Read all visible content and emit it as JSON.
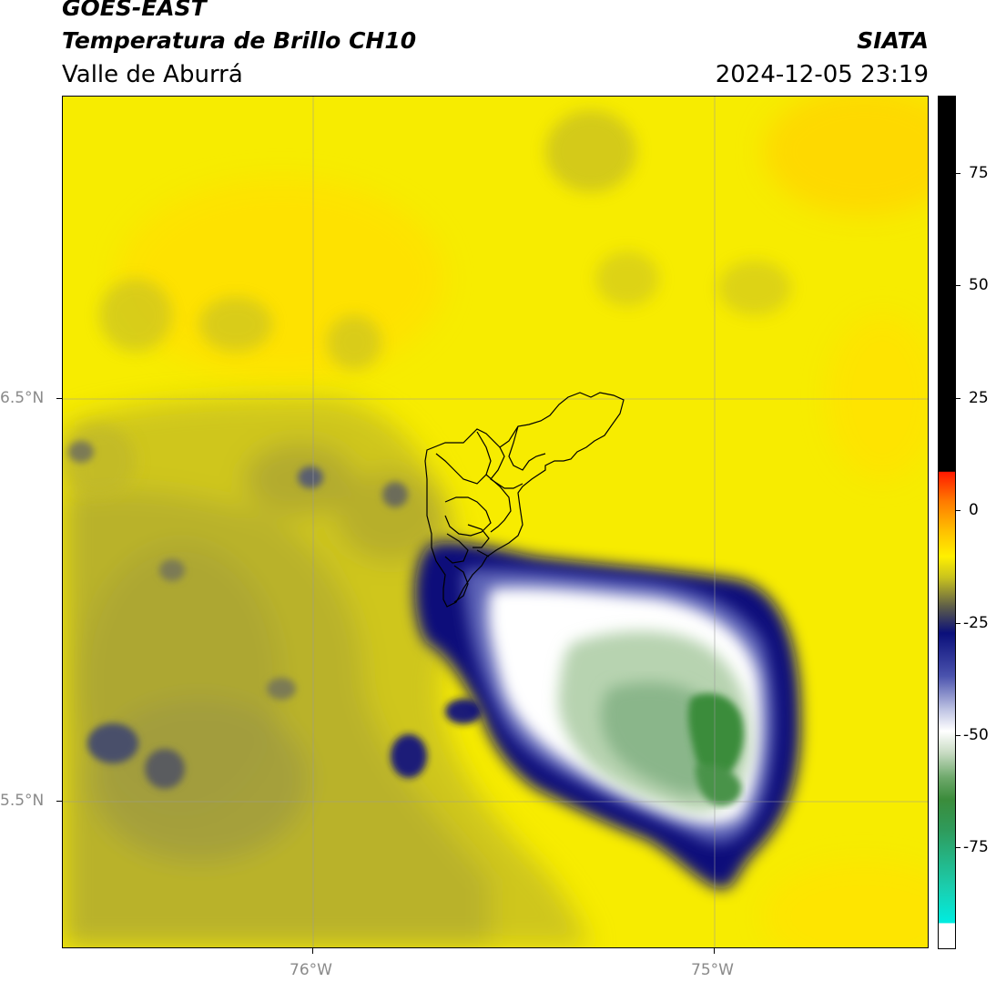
{
  "header": {
    "satellite": "GOES-EAST",
    "product": "Temperatura de Brillo CH10",
    "region": "Valle de Aburrá",
    "agency": "SIATA",
    "datetime": "2024-12-05 23:19"
  },
  "map": {
    "lat_ticks": [
      "6.5°N",
      "5.5°N"
    ],
    "lon_ticks": [
      "76°W",
      "75°W"
    ],
    "grid": true,
    "colors": {
      "background_yellow": "#ffee00",
      "olive": "#b5ad2a",
      "dark_olive": "#8c8a4a",
      "navy": "#0a0f7a",
      "white": "#ffffff",
      "light_green": "#b7d3b0",
      "green": "#3b8c3b"
    }
  },
  "colorbar": {
    "ticks": [
      "75",
      "50",
      "25",
      "0",
      "-25",
      "-50",
      "-75"
    ],
    "colors": {
      "black": "#000000",
      "red": "#ff1a00",
      "orange": "#ff9a00",
      "yellow": "#ffee00",
      "olive": "#8c8a3c",
      "navy": "#0a0f7a",
      "white": "#ffffff",
      "green": "#3b8c3b",
      "cyan": "#00e5dc"
    }
  }
}
